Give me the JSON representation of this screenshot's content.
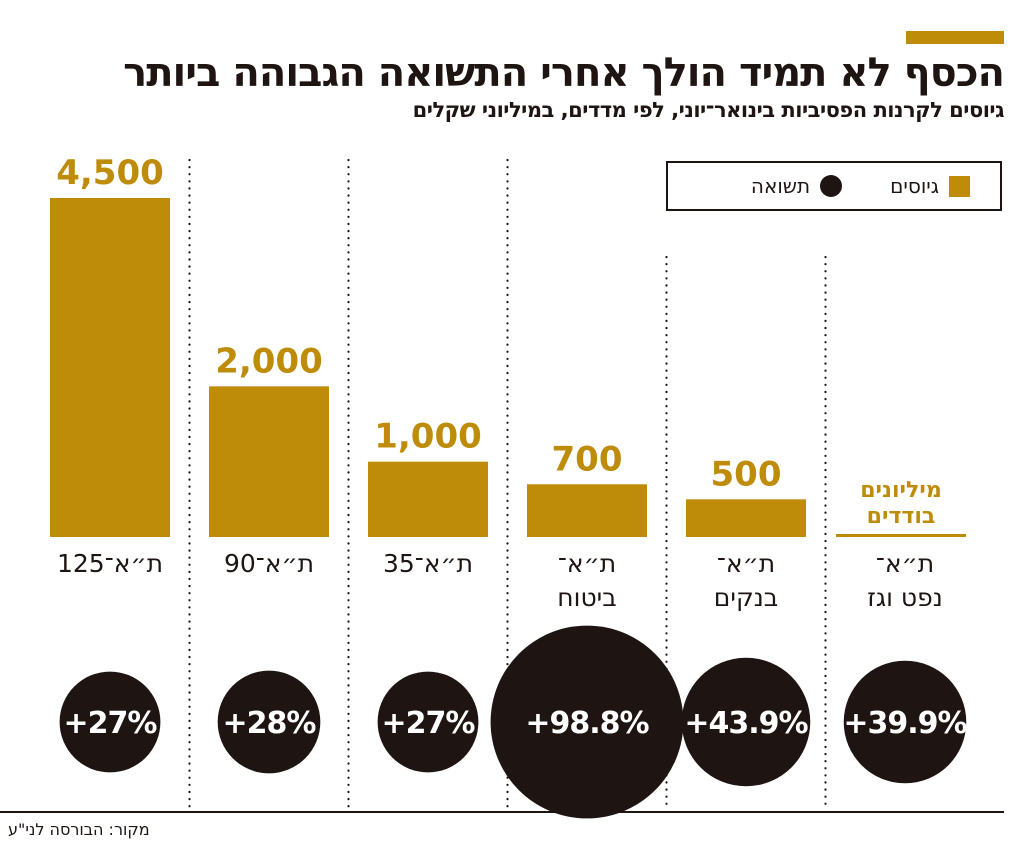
{
  "title": "הכסף לא תמיד הולך אחרי התשואה הגבוהה ביותר",
  "subtitle": "גיוסים לקרנות הפסיביות בינואר־יוני, לפי מדדים, במיליוני שקלים",
  "legend": {
    "fundraising": "גיוסים",
    "return": "תשואה"
  },
  "source": "מקור: הבורסה לני\"ע",
  "colors": {
    "bar": "#bf8c0a",
    "circle": "#1e1512"
  },
  "chart_data": {
    "type": "bar",
    "categories": [
      [
        "ת״א־125"
      ],
      [
        "ת״א־90"
      ],
      [
        "ת״א־35"
      ],
      [
        "ת״א־",
        "ביטוח"
      ],
      [
        "ת״א־",
        "בנקים"
      ],
      [
        "ת״א־",
        "נפט וגז"
      ]
    ],
    "series": [
      {
        "name": "גיוסים",
        "values": [
          4500,
          2000,
          1000,
          700,
          500,
          null
        ],
        "labels": [
          "4,500",
          "2,000",
          "1,000",
          "700",
          "500",
          ""
        ]
      },
      {
        "name": "תשואה",
        "values": [
          27,
          28,
          27,
          98.8,
          43.9,
          39.9
        ],
        "labels": [
          "+27%",
          "+28%",
          "+27%",
          "+98.8%",
          "+43.9%",
          "+39.9%"
        ]
      }
    ],
    "annotation": "מיליונים בודדים",
    "annotation_category": "ת״א־ נפט וגז"
  }
}
